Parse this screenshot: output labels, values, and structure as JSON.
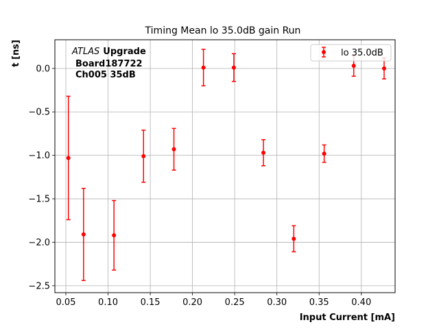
{
  "chart_data": {
    "type": "scatter",
    "title": "Timing Mean lo 35.0dB gain Run",
    "xlabel": "Input Current [mA]",
    "ylabel": "t [ns]",
    "xlim": [
      0.037,
      0.44
    ],
    "ylim": [
      -2.58,
      0.33
    ],
    "xticks": [
      0.05,
      0.1,
      0.15,
      0.2,
      0.25,
      0.3,
      0.35,
      0.4
    ],
    "xtick_labels": [
      "0.05",
      "0.10",
      "0.15",
      "0.20",
      "0.25",
      "0.30",
      "0.35",
      "0.40"
    ],
    "yticks": [
      0.0,
      -0.5,
      -1.0,
      -1.5,
      -2.0,
      -2.5
    ],
    "ytick_labels": [
      "0.0",
      "−0.5",
      "−1.0",
      "−1.5",
      "−2.0",
      "−2.5"
    ],
    "grid": true,
    "legend_position": "top-right",
    "annotation": {
      "italic": "ATLAS",
      "bold": "Upgrade",
      "line2": "Board187722",
      "line3": "Ch005 35dB"
    },
    "series": [
      {
        "name": "lo 35.0dB",
        "color": "#ff0000",
        "x": [
          0.053,
          0.071,
          0.107,
          0.142,
          0.178,
          0.213,
          0.249,
          0.284,
          0.32,
          0.356,
          0.391,
          0.427
        ],
        "y": [
          -1.03,
          -1.91,
          -1.92,
          -1.01,
          -0.93,
          0.01,
          0.01,
          -0.97,
          -1.96,
          -0.98,
          0.03,
          0.0
        ],
        "yerr": [
          0.71,
          0.53,
          0.4,
          0.3,
          0.24,
          0.21,
          0.16,
          0.15,
          0.15,
          0.1,
          0.12,
          0.12
        ]
      }
    ]
  }
}
